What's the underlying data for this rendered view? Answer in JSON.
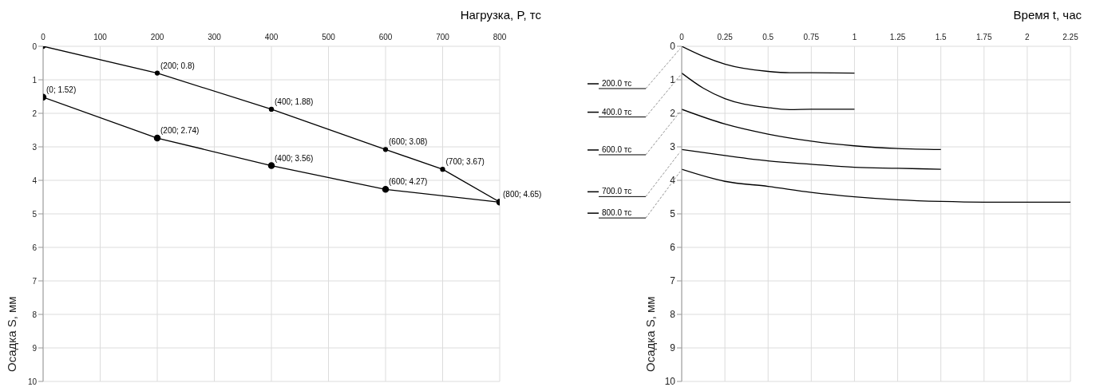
{
  "chart_data": [
    {
      "type": "line",
      "xlabel": "Нагрузка, P, тс",
      "ylabel": "Осадка S, мм",
      "xlim": [
        0,
        800
      ],
      "xticks": [
        0,
        100,
        200,
        300,
        400,
        500,
        600,
        700,
        800
      ],
      "ylim": [
        10,
        0
      ],
      "yticks": [
        0,
        1,
        2,
        3,
        4,
        5,
        6,
        7,
        8,
        9,
        10
      ],
      "grid": true,
      "marker": "circle",
      "line_style": "solid",
      "series": [
        {
          "color": "#000000",
          "x": [
            0,
            200,
            400,
            600,
            700,
            800
          ],
          "values": [
            0,
            0.8,
            1.88,
            3.08,
            3.67,
            4.65
          ],
          "value_labels": [
            null,
            "(200; 0.8)",
            "(400; 1.88)",
            "(600; 3.08)",
            "(700; 3.67)",
            "(800; 4.65)"
          ]
        },
        {
          "color": "#000000",
          "x": [
            0,
            200,
            400,
            600,
            800
          ],
          "values": [
            1.52,
            2.74,
            3.56,
            4.27,
            4.65
          ],
          "value_labels": [
            "(0; 1.52)",
            "(200; 2.74)",
            "(400; 3.56)",
            "(600; 4.27)",
            null
          ]
        }
      ]
    },
    {
      "type": "line",
      "xlabel": "Время t, час",
      "ylabel": "Осадка S, мм",
      "xlim": [
        0,
        2.25
      ],
      "xticks": [
        0,
        0.25,
        0.5,
        0.75,
        1,
        1.25,
        1.5,
        1.75,
        2,
        2.25
      ],
      "ylim": [
        10,
        0
      ],
      "yticks": [
        0,
        1,
        2,
        3,
        4,
        5,
        6,
        7,
        8,
        9,
        10
      ],
      "grid": true,
      "legend": "left",
      "marker": "none",
      "line_style": "solid",
      "series": [
        {
          "name": "200.0 тс",
          "color": "#000000",
          "x": [
            0,
            0.125,
            0.25,
            0.5,
            0.625,
            0.75,
            1
          ],
          "values": [
            0,
            0.3,
            0.53,
            0.75,
            0.79,
            0.79,
            0.8
          ]
        },
        {
          "name": "400.0 тс",
          "color": "#000000",
          "x": [
            0,
            0.125,
            0.25,
            0.5,
            0.625,
            0.75,
            1
          ],
          "values": [
            0.8,
            1.25,
            1.56,
            1.83,
            1.89,
            1.88,
            1.88
          ]
        },
        {
          "name": "600.0 тс",
          "color": "#000000",
          "x": [
            0,
            0.25,
            0.5,
            0.75,
            1,
            1.25,
            1.5
          ],
          "values": [
            1.88,
            2.32,
            2.62,
            2.83,
            2.97,
            3.05,
            3.08
          ]
        },
        {
          "name": "700.0 тс",
          "color": "#000000",
          "x": [
            0,
            0.25,
            0.5,
            0.75,
            1,
            1.25,
            1.5
          ],
          "values": [
            3.08,
            3.26,
            3.42,
            3.52,
            3.61,
            3.64,
            3.67
          ]
        },
        {
          "name": "800.0 тс",
          "color": "#000000",
          "x": [
            0,
            0.25,
            0.5,
            0.75,
            1,
            1.25,
            1.5,
            1.75,
            2,
            2.25
          ],
          "values": [
            3.67,
            4.03,
            4.18,
            4.36,
            4.49,
            4.58,
            4.63,
            4.65,
            4.65,
            4.65
          ]
        }
      ]
    }
  ]
}
